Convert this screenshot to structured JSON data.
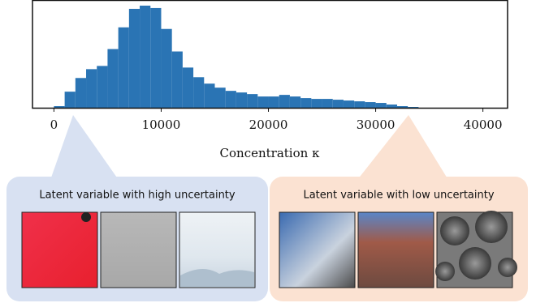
{
  "chart_data": {
    "type": "histogram",
    "xlabel": "Concentration κ",
    "bins": [
      0,
      1000,
      2000,
      3000,
      4000,
      5000,
      6000,
      7000,
      8000,
      9000,
      10000,
      11000,
      12000,
      13000,
      14000,
      15000,
      16000,
      17000,
      18000,
      19000,
      20000,
      21000,
      22000,
      23000,
      24000,
      25000,
      26000,
      27000,
      28000,
      29000,
      30000,
      31000,
      32000,
      33000,
      34000
    ],
    "values": [
      2,
      20,
      37,
      48,
      52,
      73,
      100,
      123,
      127,
      124,
      98,
      70,
      50,
      38,
      30,
      25,
      21,
      19,
      17,
      14,
      14,
      16,
      14,
      12,
      11,
      11,
      10,
      9,
      8,
      7,
      6,
      4,
      2,
      1
    ],
    "color": "#2a74b4",
    "xlim": [
      -2000,
      42300
    ],
    "ylim": [
      0,
      133
    ],
    "xticks": [
      0,
      10000,
      20000,
      30000,
      40000
    ]
  },
  "panels": [
    {
      "title": "Latent variable with high uncertainty"
    },
    {
      "title": "Latent variable with low uncertainty"
    }
  ]
}
